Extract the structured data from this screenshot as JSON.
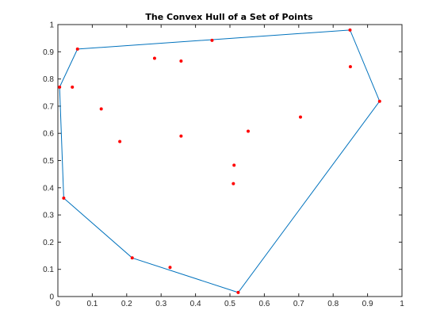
{
  "chart_data": {
    "type": "scatter",
    "title": "The Convex Hull of a Set of Points",
    "xlabel": "",
    "ylabel": "",
    "xlim": [
      0,
      1
    ],
    "ylim": [
      0,
      1
    ],
    "grid": false,
    "xticks": [
      0,
      0.1,
      0.2,
      0.3,
      0.4,
      0.5,
      0.6,
      0.7,
      0.8,
      0.9,
      1
    ],
    "yticks": [
      0,
      0.1,
      0.2,
      0.3,
      0.4,
      0.5,
      0.6,
      0.7,
      0.8,
      0.9,
      1
    ],
    "xtick_labels": [
      "0",
      "0.1",
      "0.2",
      "0.3",
      "0.4",
      "0.5",
      "0.6",
      "0.7",
      "0.8",
      "0.9",
      "1"
    ],
    "ytick_labels": [
      "0",
      "0.1",
      "0.2",
      "0.3",
      "0.4",
      "0.5",
      "0.6",
      "0.7",
      "0.8",
      "0.9",
      "1"
    ],
    "point_color": "#ff0000",
    "hull_color": "#0072bd",
    "points": [
      [
        0.057,
        0.91
      ],
      [
        0.448,
        0.942
      ],
      [
        0.849,
        0.98
      ],
      [
        0.281,
        0.876
      ],
      [
        0.358,
        0.866
      ],
      [
        0.85,
        0.845
      ],
      [
        0.005,
        0.77
      ],
      [
        0.042,
        0.77
      ],
      [
        0.935,
        0.718
      ],
      [
        0.126,
        0.69
      ],
      [
        0.705,
        0.66
      ],
      [
        0.553,
        0.608
      ],
      [
        0.358,
        0.59
      ],
      [
        0.18,
        0.57
      ],
      [
        0.512,
        0.483
      ],
      [
        0.51,
        0.415
      ],
      [
        0.017,
        0.362
      ],
      [
        0.216,
        0.142
      ],
      [
        0.326,
        0.107
      ],
      [
        0.524,
        0.015
      ]
    ],
    "hull": [
      [
        0.057,
        0.91
      ],
      [
        0.849,
        0.98
      ],
      [
        0.935,
        0.718
      ],
      [
        0.524,
        0.015
      ],
      [
        0.216,
        0.142
      ],
      [
        0.017,
        0.362
      ],
      [
        0.005,
        0.77
      ],
      [
        0.057,
        0.91
      ]
    ]
  }
}
